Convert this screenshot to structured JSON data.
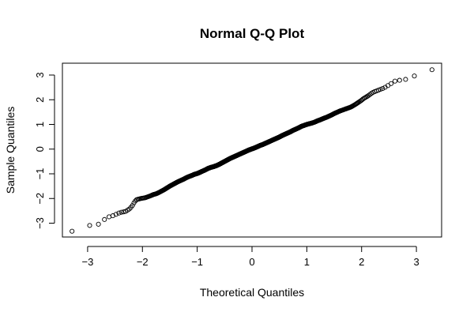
{
  "chart_data": {
    "type": "scatter",
    "title": "Normal Q-Q Plot",
    "xlabel": "Theoretical Quantiles",
    "ylabel": "Sample Quantiles",
    "xlim": [
      -3.46,
      3.46
    ],
    "ylim": [
      -3.56,
      3.48
    ],
    "xticks": [
      -3,
      -2,
      -1,
      0,
      1,
      2,
      3
    ],
    "yticks": [
      -3,
      -2,
      -1,
      0,
      1,
      2,
      3
    ],
    "grid": false,
    "marker": "open-circle",
    "marker_color": "#000000",
    "n_points": 1000,
    "points": [
      [
        -3.29,
        -3.33
      ],
      [
        -3.0,
        -3.1
      ],
      [
        -2.85,
        -3.07
      ],
      [
        -2.75,
        -3.01
      ],
      [
        -2.66,
        -2.76
      ],
      [
        -2.6,
        -2.74
      ],
      [
        -2.55,
        -2.71
      ],
      [
        -2.5,
        -2.66
      ],
      [
        -2.45,
        -2.61
      ],
      [
        -2.41,
        -2.57
      ],
      [
        -2.37,
        -2.55
      ],
      [
        -2.34,
        -2.54
      ],
      [
        -2.3,
        -2.52
      ],
      [
        -2.27,
        -2.47
      ],
      [
        -2.24,
        -2.43
      ],
      [
        -2.21,
        -2.36
      ],
      [
        -2.18,
        -2.28
      ],
      [
        -2.16,
        -2.2
      ],
      [
        -2.13,
        -2.1
      ],
      [
        -2.11,
        -2.05
      ],
      [
        -2.08,
        -2.03
      ],
      [
        -2.06,
        -2.02
      ],
      [
        -2.03,
        -2.0
      ],
      [
        -2.0,
        -1.99
      ],
      [
        -1.95,
        -1.97
      ],
      [
        -1.9,
        -1.93
      ],
      [
        -1.85,
        -1.89
      ],
      [
        -1.8,
        -1.84
      ],
      [
        -1.75,
        -1.81
      ],
      [
        -1.7,
        -1.76
      ],
      [
        -1.65,
        -1.7
      ],
      [
        -1.6,
        -1.64
      ],
      [
        -1.55,
        -1.57
      ],
      [
        -1.5,
        -1.5
      ],
      [
        -1.45,
        -1.44
      ],
      [
        -1.4,
        -1.38
      ],
      [
        -1.35,
        -1.32
      ],
      [
        -1.3,
        -1.27
      ],
      [
        -1.25,
        -1.22
      ],
      [
        -1.2,
        -1.16
      ],
      [
        -1.15,
        -1.11
      ],
      [
        -1.1,
        -1.07
      ],
      [
        -1.05,
        -1.02
      ],
      [
        -1.0,
        -0.99
      ],
      [
        -0.95,
        -0.94
      ],
      [
        -0.9,
        -0.89
      ],
      [
        -0.85,
        -0.84
      ],
      [
        -0.8,
        -0.78
      ],
      [
        -0.75,
        -0.74
      ],
      [
        -0.7,
        -0.71
      ],
      [
        -0.65,
        -0.67
      ],
      [
        -0.6,
        -0.62
      ],
      [
        -0.55,
        -0.56
      ],
      [
        -0.5,
        -0.5
      ],
      [
        -0.45,
        -0.44
      ],
      [
        -0.4,
        -0.38
      ],
      [
        -0.35,
        -0.33
      ],
      [
        -0.3,
        -0.28
      ],
      [
        -0.25,
        -0.23
      ],
      [
        -0.2,
        -0.18
      ],
      [
        -0.15,
        -0.13
      ],
      [
        -0.1,
        -0.08
      ],
      [
        -0.05,
        -0.03
      ],
      [
        0.0,
        0.01
      ],
      [
        0.05,
        0.05
      ],
      [
        0.1,
        0.1
      ],
      [
        0.15,
        0.15
      ],
      [
        0.2,
        0.19
      ],
      [
        0.25,
        0.24
      ],
      [
        0.3,
        0.29
      ],
      [
        0.35,
        0.34
      ],
      [
        0.4,
        0.39
      ],
      [
        0.45,
        0.44
      ],
      [
        0.5,
        0.49
      ],
      [
        0.55,
        0.55
      ],
      [
        0.6,
        0.6
      ],
      [
        0.65,
        0.65
      ],
      [
        0.7,
        0.7
      ],
      [
        0.75,
        0.76
      ],
      [
        0.8,
        0.81
      ],
      [
        0.85,
        0.86
      ],
      [
        0.9,
        0.92
      ],
      [
        0.95,
        0.96
      ],
      [
        1.0,
        1.0
      ],
      [
        1.05,
        1.03
      ],
      [
        1.1,
        1.06
      ],
      [
        1.15,
        1.1
      ],
      [
        1.2,
        1.15
      ],
      [
        1.25,
        1.19
      ],
      [
        1.3,
        1.24
      ],
      [
        1.35,
        1.28
      ],
      [
        1.4,
        1.33
      ],
      [
        1.45,
        1.38
      ],
      [
        1.5,
        1.44
      ],
      [
        1.55,
        1.49
      ],
      [
        1.6,
        1.54
      ],
      [
        1.65,
        1.58
      ],
      [
        1.7,
        1.62
      ],
      [
        1.75,
        1.66
      ],
      [
        1.8,
        1.7
      ],
      [
        1.84,
        1.75
      ],
      [
        1.88,
        1.8
      ],
      [
        1.92,
        1.86
      ],
      [
        1.96,
        1.92
      ],
      [
        2.0,
        1.98
      ],
      [
        2.03,
        2.04
      ],
      [
        2.06,
        2.08
      ],
      [
        2.09,
        2.12
      ],
      [
        2.12,
        2.16
      ],
      [
        2.15,
        2.21
      ],
      [
        2.18,
        2.26
      ],
      [
        2.21,
        2.3
      ],
      [
        2.25,
        2.34
      ],
      [
        2.29,
        2.37
      ],
      [
        2.33,
        2.41
      ],
      [
        2.37,
        2.44
      ],
      [
        2.42,
        2.49
      ],
      [
        2.47,
        2.56
      ],
      [
        2.53,
        2.64
      ],
      [
        2.58,
        2.72
      ],
      [
        2.63,
        2.78
      ],
      [
        2.7,
        2.79
      ],
      [
        2.78,
        2.81
      ],
      [
        2.87,
        2.87
      ],
      [
        3.0,
        3.0
      ],
      [
        3.29,
        3.22
      ]
    ]
  }
}
